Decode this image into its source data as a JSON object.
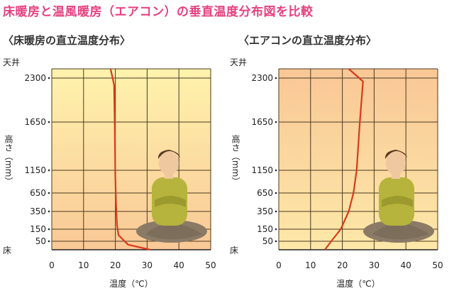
{
  "title": "床暖房と温風暖房（エアコン）の垂直温度分布図を比較",
  "chart_data": [
    {
      "type": "line",
      "title": "〈床暖房の直立温度分布〉",
      "xlabel": "温度（℃）",
      "ylabel": "高さ（mm）",
      "ceiling_label": "天井",
      "floor_label": "床",
      "x_ticks": [
        0,
        10,
        20,
        30,
        40,
        50
      ],
      "y_ticks": [
        50,
        150,
        350,
        650,
        1150,
        1650,
        2300
      ],
      "xlim": [
        0,
        50
      ],
      "series": [
        {
          "points": [
            {
              "x": 31,
              "y": 0
            },
            {
              "x": 24,
              "y": 30
            },
            {
              "x": 21,
              "y": 100
            },
            {
              "x": 20.5,
              "y": 200
            },
            {
              "x": 20.2,
              "y": 500
            },
            {
              "x": 20,
              "y": 1000
            },
            {
              "x": 19.8,
              "y": 1650
            },
            {
              "x": 19.6,
              "y": 2200
            },
            {
              "x": 18.5,
              "y": 2400
            }
          ]
        }
      ],
      "background_colors": {
        "top": "#fff3ad",
        "bottom": "#f9c896"
      },
      "line_color": "#d93a1a"
    },
    {
      "type": "line",
      "title": "〈エアコンの直立温度分布〉",
      "xlabel": "温度（℃）",
      "ylabel": "高さ（mm）",
      "ceiling_label": "天井",
      "floor_label": "床",
      "x_ticks": [
        0,
        10,
        20,
        30,
        40,
        50
      ],
      "y_ticks": [
        50,
        150,
        350,
        650,
        1150,
        1650,
        2300
      ],
      "xlim": [
        0,
        50
      ],
      "series": [
        {
          "points": [
            {
              "x": 14.5,
              "y": 0
            },
            {
              "x": 16.5,
              "y": 50
            },
            {
              "x": 19.5,
              "y": 150
            },
            {
              "x": 22,
              "y": 350
            },
            {
              "x": 23.5,
              "y": 650
            },
            {
              "x": 24.5,
              "y": 1150
            },
            {
              "x": 25.5,
              "y": 1650
            },
            {
              "x": 26.5,
              "y": 2250
            },
            {
              "x": 22,
              "y": 2400
            }
          ]
        }
      ],
      "background_colors": {
        "top": "#f9c796",
        "bottom": "#fde8a8"
      },
      "line_color": "#d93a1a"
    }
  ]
}
